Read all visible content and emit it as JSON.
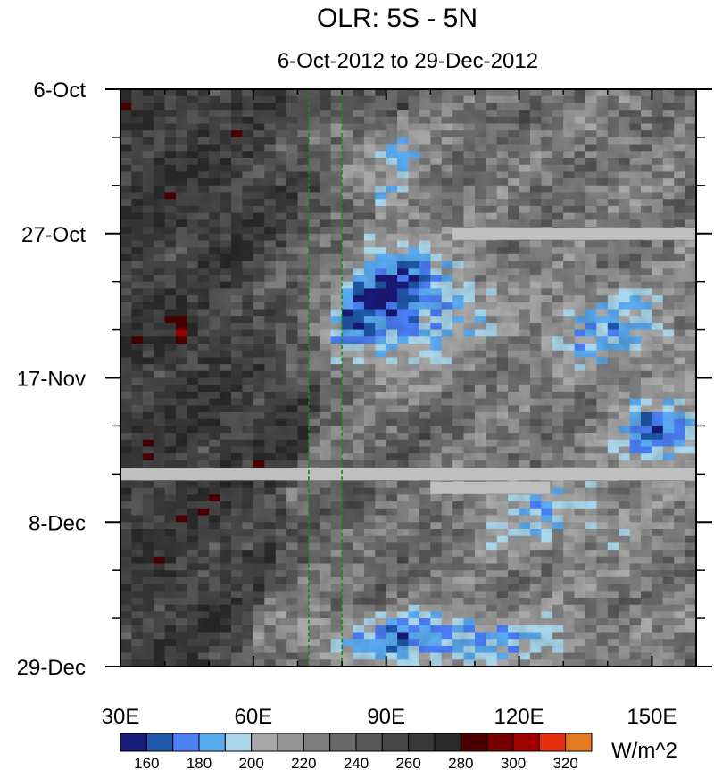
{
  "chart_data": {
    "type": "heatmap",
    "title": "OLR: 5S - 5N",
    "subtitle": "6-Oct-2012 to 29-Dec-2012",
    "units_label": "W/m^2",
    "x_tick_labels": [
      "30E",
      "60E",
      "90E",
      "120E",
      "150E"
    ],
    "x_ticks": [
      30,
      60,
      90,
      120,
      150
    ],
    "xlim": [
      30,
      160
    ],
    "y_tick_labels": [
      "6-Oct",
      "27-Oct",
      "17-Nov",
      "8-Dec",
      "29-Dec"
    ],
    "y_ticks": [
      "2012-10-06",
      "2012-10-27",
      "2012-11-17",
      "2012-12-08",
      "2012-12-29"
    ],
    "ylim": [
      "2012-10-06",
      "2012-12-29"
    ],
    "reference_lines_lon": [
      72.5,
      80
    ],
    "reference_line_color": "#1a8a1a",
    "colorbar": {
      "levels": [
        160,
        170,
        180,
        190,
        200,
        210,
        220,
        230,
        240,
        250,
        260,
        270,
        280,
        290,
        300,
        310,
        320
      ],
      "level_labels": [
        "160",
        "180",
        "200",
        "220",
        "240",
        "260",
        "280",
        "300",
        "320"
      ],
      "colors": [
        "#1a1a7a",
        "#1f58a8",
        "#4b7ef5",
        "#5aaaf0",
        "#a9d6ea",
        "#a8a8a8",
        "#959595",
        "#7e7e7e",
        "#6a6a6a",
        "#575757",
        "#464646",
        "#383838",
        "#2a2a2a",
        "#4a0000",
        "#7a0000",
        "#a00000",
        "#e83010",
        "#e67a20"
      ]
    },
    "missing_color": "#c0c0c0",
    "missing_bands": [
      {
        "date": "2012-10-27",
        "lon_range": [
          105,
          160
        ]
      },
      {
        "date": "2012-12-01",
        "lon_range": [
          30,
          160
        ]
      },
      {
        "date": "2012-12-03",
        "lon_range": [
          100,
          127
        ]
      }
    ]
  }
}
